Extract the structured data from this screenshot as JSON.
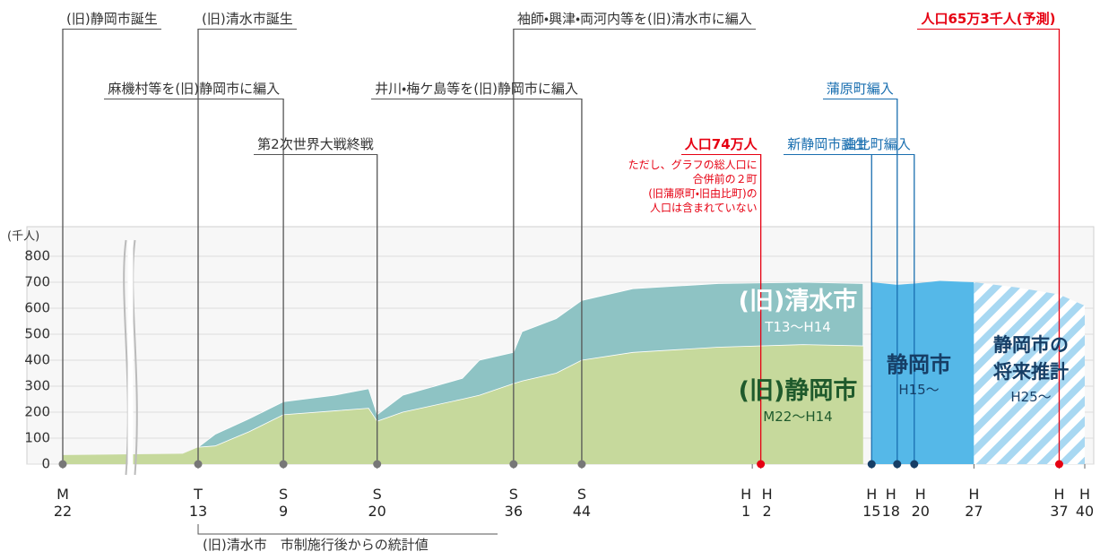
{
  "chart_data": {
    "type": "area",
    "y_unit": "(千人)",
    "xlim": [
      1889,
      2028
    ],
    "axis_break": true,
    "xticks": [
      {
        "value": 1889,
        "label": "M\n22"
      },
      {
        "value": 1924,
        "label": "T\n13"
      },
      {
        "value": 1934,
        "label": "S\n9"
      },
      {
        "value": 1945,
        "label": "S\n20"
      },
      {
        "value": 1961,
        "label": "S\n36"
      },
      {
        "value": 1969,
        "label": "S\n44"
      },
      {
        "value": 1989,
        "label": "H\n1"
      },
      {
        "value": 1990,
        "label": "H\n2"
      },
      {
        "value": 2003,
        "label": "H\n15"
      },
      {
        "value": 2006,
        "label": "H\n18"
      },
      {
        "value": 2008,
        "label": "H\n20"
      },
      {
        "value": 2015,
        "label": "H\n27"
      },
      {
        "value": 2025,
        "label": "H\n37"
      },
      {
        "value": 2028,
        "label": "H\n40"
      }
    ],
    "ylim": [
      0,
      800
    ],
    "yticks": [
      0,
      100,
      200,
      300,
      400,
      500,
      600,
      700,
      800
    ],
    "grid": true,
    "series": [
      {
        "name": "(旧)静岡市",
        "period": "M22〜H14",
        "color": "#c6d99c",
        "x": [
          1889,
          1920,
          1924,
          1926,
          1930,
          1934,
          1940,
          1944,
          1945,
          1948,
          1955,
          1957,
          1961,
          1962,
          1966,
          1969,
          1975,
          1985,
          1995,
          2002
        ],
        "values": [
          35,
          40,
          65,
          70,
          125,
          190,
          205,
          215,
          165,
          200,
          250,
          265,
          310,
          320,
          350,
          400,
          430,
          450,
          460,
          455
        ]
      },
      {
        "name": "(旧)清水市",
        "period": "T13〜H14",
        "color": "#8ec3c4",
        "stacked": true,
        "x": [
          1889,
          1920,
          1924,
          1926,
          1930,
          1934,
          1940,
          1944,
          1945,
          1948,
          1955,
          1957,
          1961,
          1962,
          1966,
          1969,
          1975,
          1985,
          1995,
          2002
        ],
        "values": [
          null,
          null,
          0,
          45,
          50,
          50,
          60,
          75,
          25,
          65,
          80,
          135,
          120,
          190,
          210,
          230,
          245,
          245,
          240,
          240
        ]
      },
      {
        "name": "静岡市",
        "period": "H15〜",
        "color": "#55b8e8",
        "x": [
          2003,
          2006,
          2008,
          2011,
          2015
        ],
        "values": [
          700,
          690,
          695,
          705,
          700
        ]
      },
      {
        "name": "静岡市の\n将来推計",
        "period": "H25〜",
        "color": "#a8d8f2",
        "hatched": true,
        "x": [
          2015,
          2020,
          2025,
          2028
        ],
        "values": [
          700,
          680,
          653,
          610
        ]
      }
    ],
    "events": [
      {
        "label": "(旧)静岡市誕生",
        "x": 1889,
        "color": "#555555"
      },
      {
        "label": "(旧)清水市誕生",
        "x": 1924,
        "color": "#555555"
      },
      {
        "label": "麻機村等を(旧)静岡市に編入",
        "x": 1934,
        "color": "#555555"
      },
      {
        "label": "第2次世界大戦終戦",
        "x": 1945,
        "color": "#555555"
      },
      {
        "label": "袖師・興津・両河内等を(旧)清水市に編入",
        "x": 1961,
        "color": "#555555"
      },
      {
        "label": "井川・梅ケ島等を(旧)静岡市に編入",
        "x": 1969,
        "color": "#555555"
      },
      {
        "label": "人口74万人",
        "x": 1990,
        "color": "#e60012",
        "note": "ただし、グラフの総人口に\n合併前の２町\n(旧蒲原町・旧由比町)の\n人口は含まれていない"
      },
      {
        "label": "新静岡市誕生",
        "x": 2003,
        "color": "#1a6fb0"
      },
      {
        "label": "蒲原町編入",
        "x": 2006,
        "color": "#1a6fb0"
      },
      {
        "label": "由比町編入",
        "x": 2008,
        "color": "#1a6fb0"
      },
      {
        "label": "人口65万3千人(予測)",
        "x": 2025,
        "color": "#e60012"
      }
    ],
    "footnote": "(旧)清水市　市制施行後からの統計値"
  }
}
